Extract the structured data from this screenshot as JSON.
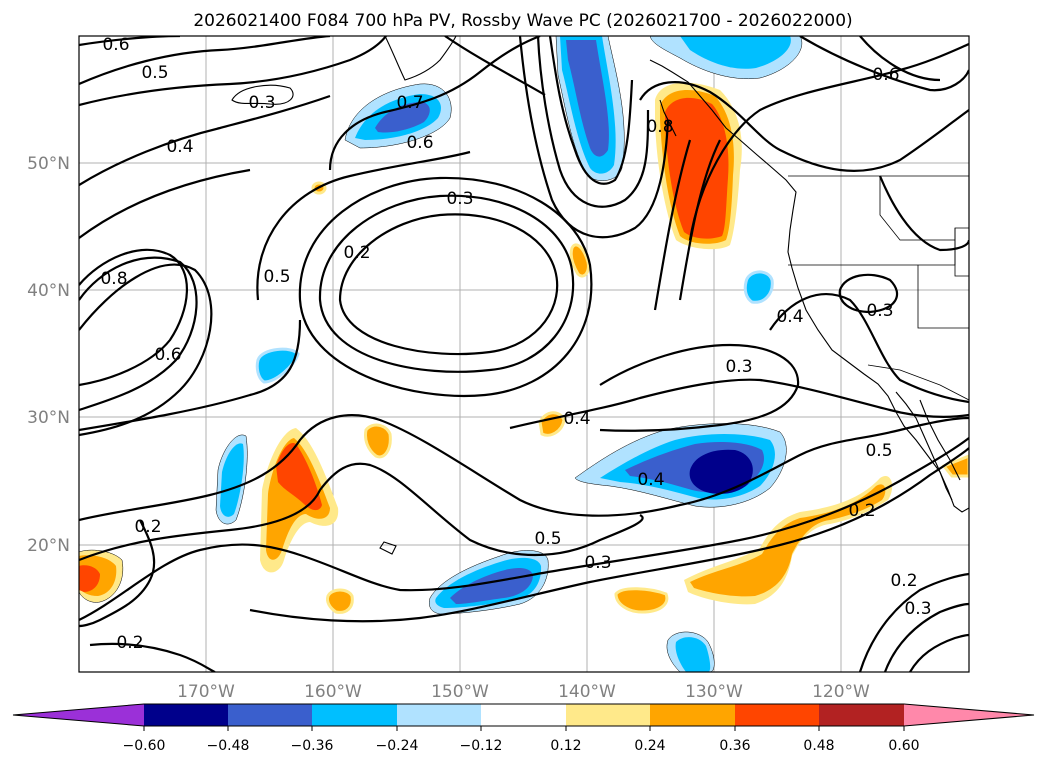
{
  "map": {
    "title": "2026021400 F084 700 hPa PV, Rossby Wave PC (2026021700 - 2026022000)",
    "lat_ticks": [
      "50°N",
      "40°N",
      "30°N",
      "20°N"
    ],
    "lon_ticks": [
      "170°W",
      "160°W",
      "150°W",
      "140°W",
      "130°W",
      "120°W"
    ],
    "contour_labels": [
      "0.6",
      "0.5",
      "0.3",
      "0.4",
      "0.7",
      "0.6",
      "0.3",
      "0.2",
      "0.5",
      "0.8",
      "0.6",
      "0.8",
      "0.6",
      "0.3",
      "0.4",
      "0.3",
      "0.4",
      "0.4",
      "0.5",
      "0.3",
      "0.2",
      "0.5",
      "0.2",
      "0.2",
      "0.3",
      "0.2"
    ],
    "colors": {
      "neg060": "#9b30d8",
      "neg048": "#00008b",
      "neg036": "#3a5fcd",
      "neg024": "#00bfff",
      "neg012": "#b0e2ff",
      "pos012": "#ffe98a",
      "pos024": "#ffa500",
      "pos036": "#ff4500",
      "pos048": "#b22222",
      "pos060": "#ff88aa"
    }
  },
  "colorbar": {
    "tick_labels": [
      "−0.60",
      "−0.48",
      "−0.36",
      "−0.24",
      "−0.12",
      "0.12",
      "0.24",
      "0.36",
      "0.48",
      "0.60"
    ],
    "bins": [
      "#9b30d8",
      "#00008b",
      "#3a5fcd",
      "#00bfff",
      "#b0e2ff",
      "#ffffff",
      "#ffe98a",
      "#ffa500",
      "#ff4500",
      "#b22222",
      "#ff88aa"
    ]
  }
}
